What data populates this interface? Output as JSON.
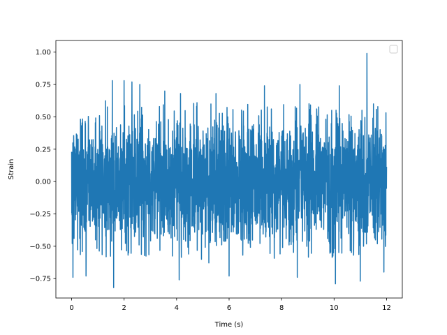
{
  "chart_data": {
    "type": "line",
    "title": "",
    "xlabel": "Time (s)",
    "ylabel": "Strain",
    "xlim": [
      -0.6,
      12.6
    ],
    "ylim": [
      -0.9,
      1.09
    ],
    "x_ticks": [
      0,
      2,
      4,
      6,
      8,
      10,
      12
    ],
    "x_tick_labels": [
      "0",
      "2",
      "4",
      "6",
      "8",
      "10",
      "12"
    ],
    "y_ticks": [
      -0.75,
      -0.5,
      -0.25,
      0.0,
      0.25,
      0.5,
      0.75,
      1.0
    ],
    "y_tick_labels": [
      "−0.75",
      "−0.50",
      "−0.25",
      "0.00",
      "0.25",
      "0.50",
      "0.75",
      "1.00"
    ],
    "grid": false,
    "legend": {
      "position": "top-right",
      "entries": []
    },
    "series": [
      {
        "color": "#1f77b4",
        "description_of_signal": "dense noise-like oscillation spanning the full time range",
        "x_range": [
          0,
          12
        ],
        "typical_envelope": [
          -0.45,
          0.45
        ],
        "peaks": [
          {
            "x": 0.05,
            "y": -0.74
          },
          {
            "x": 0.55,
            "y": -0.73
          },
          {
            "x": 1.55,
            "y": 0.78
          },
          {
            "x": 1.6,
            "y": -0.82
          },
          {
            "x": 2.0,
            "y": 0.78
          },
          {
            "x": 2.3,
            "y": 0.77
          },
          {
            "x": 2.6,
            "y": 0.75
          },
          {
            "x": 3.55,
            "y": 0.7
          },
          {
            "x": 4.1,
            "y": -0.76
          },
          {
            "x": 4.15,
            "y": 0.68
          },
          {
            "x": 5.5,
            "y": 0.68
          },
          {
            "x": 6.0,
            "y": -0.73
          },
          {
            "x": 7.35,
            "y": 0.74
          },
          {
            "x": 8.6,
            "y": -0.74
          },
          {
            "x": 8.7,
            "y": 0.75
          },
          {
            "x": 10.05,
            "y": -0.79
          },
          {
            "x": 10.2,
            "y": 0.74
          },
          {
            "x": 11.0,
            "y": -0.77
          },
          {
            "x": 11.25,
            "y": 0.99
          },
          {
            "x": 11.5,
            "y": 0.6
          },
          {
            "x": 11.9,
            "y": -0.7
          }
        ]
      }
    ]
  }
}
